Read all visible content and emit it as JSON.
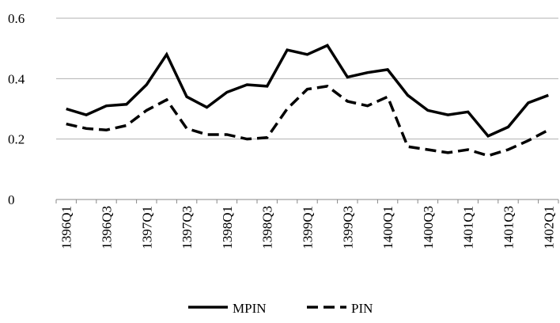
{
  "chart_data": {
    "type": "line",
    "categories": [
      "1396Q1",
      null,
      "1396Q3",
      null,
      "1397Q1",
      null,
      "1397Q3",
      null,
      "1398Q1",
      null,
      "1398Q3",
      null,
      "1399Q1",
      null,
      "1399Q3",
      null,
      "1400Q1",
      null,
      "1400Q3",
      null,
      "1401Q1",
      null,
      "1401Q3",
      null,
      "1402Q1"
    ],
    "series": [
      {
        "name": "MPIN",
        "color": "#000000",
        "dashed": false,
        "values": [
          0.3,
          0.28,
          0.31,
          0.315,
          0.38,
          0.48,
          0.34,
          0.305,
          0.355,
          0.38,
          0.375,
          0.495,
          0.48,
          0.51,
          0.405,
          0.42,
          0.43,
          0.345,
          0.295,
          0.28,
          0.29,
          0.21,
          0.24,
          0.32,
          0.345
        ]
      },
      {
        "name": "PIN",
        "color": "#000000",
        "dashed": true,
        "values": [
          0.25,
          0.235,
          0.23,
          0.245,
          0.295,
          0.33,
          0.235,
          0.215,
          0.215,
          0.2,
          0.205,
          0.3,
          0.365,
          0.375,
          0.325,
          0.31,
          0.34,
          0.175,
          0.165,
          0.155,
          0.165,
          0.145,
          0.165,
          0.195,
          0.23
        ]
      }
    ],
    "ylim": [
      0,
      0.6
    ],
    "yticks": [
      0,
      0.2,
      0.4,
      0.6
    ],
    "grid": true,
    "legend": "bottom"
  }
}
